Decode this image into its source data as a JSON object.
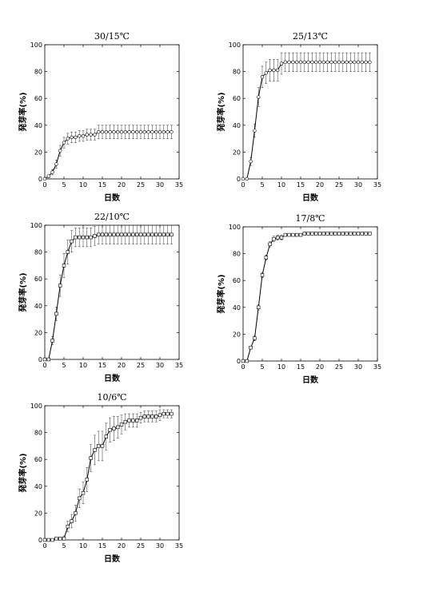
{
  "chart_data": [
    {
      "type": "line",
      "title": "30/15℃",
      "xlabel": "日数",
      "ylabel": "発芽率(%)",
      "xlim": [
        0,
        35
      ],
      "ylim": [
        0,
        100
      ],
      "xticks": [
        0,
        5,
        10,
        15,
        20,
        25,
        30,
        35
      ],
      "yticks": [
        0,
        20,
        40,
        60,
        80,
        100
      ],
      "marker": "circle",
      "x": [
        0,
        1,
        2,
        3,
        4,
        5,
        6,
        7,
        8,
        9,
        10,
        11,
        12,
        13,
        14,
        15,
        16,
        17,
        18,
        19,
        20,
        21,
        22,
        23,
        24,
        25,
        26,
        27,
        28,
        29,
        30,
        31,
        32,
        33
      ],
      "values": [
        0,
        2,
        5,
        11,
        21,
        27,
        30,
        31,
        31,
        32,
        32,
        33,
        33,
        33,
        35,
        35,
        35,
        35,
        35,
        35,
        35,
        35,
        35,
        35,
        35,
        35,
        35,
        35,
        35,
        35,
        35,
        35,
        35,
        35
      ],
      "error": [
        0,
        1,
        2,
        3,
        4,
        4,
        4,
        4,
        4,
        4,
        4,
        4,
        4,
        4,
        5,
        5,
        5,
        5,
        5,
        5,
        5,
        5,
        5,
        5,
        5,
        5,
        5,
        5,
        5,
        5,
        5,
        5,
        5,
        5
      ]
    },
    {
      "type": "line",
      "title": "25/13℃",
      "xlabel": "日数",
      "ylabel": "発芽率(%)",
      "xlim": [
        0,
        35
      ],
      "ylim": [
        0,
        100
      ],
      "xticks": [
        0,
        5,
        10,
        15,
        20,
        25,
        30,
        35
      ],
      "yticks": [
        0,
        20,
        40,
        60,
        80,
        100
      ],
      "marker": "circle",
      "x": [
        0,
        1,
        2,
        3,
        4,
        5,
        6,
        7,
        8,
        9,
        10,
        11,
        12,
        13,
        14,
        15,
        16,
        17,
        18,
        19,
        20,
        21,
        22,
        23,
        24,
        25,
        26,
        27,
        28,
        29,
        30,
        31,
        32,
        33
      ],
      "values": [
        0,
        0,
        13,
        36,
        61,
        76,
        79,
        81,
        81,
        81,
        86,
        87,
        87,
        87,
        87,
        87,
        87,
        87,
        87,
        87,
        87,
        87,
        87,
        87,
        87,
        87,
        87,
        87,
        87,
        87,
        87,
        87,
        87,
        87
      ],
      "error": [
        0,
        0,
        3,
        5,
        7,
        8,
        8,
        8,
        8,
        8,
        8,
        7,
        7,
        7,
        7,
        7,
        7,
        7,
        7,
        7,
        7,
        7,
        7,
        7,
        7,
        7,
        7,
        7,
        7,
        7,
        7,
        7,
        7,
        7
      ]
    },
    {
      "type": "line",
      "title": "22/10℃",
      "xlabel": "日数",
      "ylabel": "発芽率(%)",
      "xlim": [
        0,
        35
      ],
      "ylim": [
        0,
        100
      ],
      "xticks": [
        0,
        5,
        10,
        15,
        20,
        25,
        30,
        35
      ],
      "yticks": [
        0,
        20,
        40,
        60,
        80,
        100
      ],
      "marker": "square",
      "x": [
        0,
        1,
        2,
        3,
        4,
        5,
        6,
        7,
        8,
        9,
        10,
        11,
        12,
        13,
        14,
        15,
        16,
        17,
        18,
        19,
        20,
        21,
        22,
        23,
        24,
        25,
        26,
        27,
        28,
        29,
        30,
        31,
        32,
        33
      ],
      "values": [
        0,
        0,
        14,
        34,
        55,
        70,
        80,
        88,
        91,
        91,
        91,
        91,
        91,
        92,
        93,
        93,
        93,
        93,
        93,
        93,
        93,
        93,
        93,
        93,
        93,
        93,
        93,
        93,
        93,
        93,
        93,
        93,
        93,
        93
      ],
      "error": [
        0,
        0,
        3,
        5,
        8,
        9,
        9,
        8,
        7,
        7,
        7,
        7,
        7,
        7,
        7,
        7,
        7,
        7,
        7,
        7,
        7,
        7,
        7,
        7,
        7,
        7,
        7,
        7,
        7,
        7,
        7,
        7,
        7,
        7
      ]
    },
    {
      "type": "line",
      "title": "17/8℃",
      "xlabel": "日数",
      "ylabel": "発芽率(%)",
      "xlim": [
        0,
        35
      ],
      "ylim": [
        0,
        100
      ],
      "xticks": [
        0,
        5,
        10,
        15,
        20,
        25,
        30,
        35
      ],
      "yticks": [
        0,
        20,
        40,
        60,
        80,
        100
      ],
      "marker": "square",
      "x": [
        0,
        1,
        2,
        3,
        4,
        5,
        6,
        7,
        8,
        9,
        10,
        11,
        12,
        13,
        14,
        15,
        16,
        17,
        18,
        19,
        20,
        21,
        22,
        23,
        24,
        25,
        26,
        27,
        28,
        29,
        30,
        31,
        32,
        33
      ],
      "values": [
        0,
        0,
        10,
        17,
        40,
        64,
        77,
        87,
        91,
        92,
        92,
        94,
        94,
        94,
        94,
        94,
        95,
        95,
        95,
        95,
        95,
        95,
        95,
        95,
        95,
        95,
        95,
        95,
        95,
        95,
        95,
        95,
        95,
        95
      ],
      "error": [
        0,
        0,
        1,
        2,
        2,
        2,
        2,
        2,
        2,
        2,
        2,
        1,
        1,
        1,
        1,
        1,
        1,
        1,
        1,
        1,
        1,
        1,
        1,
        1,
        1,
        1,
        1,
        1,
        1,
        1,
        1,
        1,
        1,
        1
      ]
    },
    {
      "type": "line",
      "title": "10/6℃",
      "xlabel": "日数",
      "ylabel": "発芽率(%)",
      "xlim": [
        0,
        35
      ],
      "ylim": [
        0,
        100
      ],
      "xticks": [
        0,
        5,
        10,
        15,
        20,
        25,
        30,
        35
      ],
      "yticks": [
        0,
        20,
        40,
        60,
        80,
        100
      ],
      "marker": "square",
      "x": [
        0,
        1,
        2,
        3,
        4,
        5,
        6,
        7,
        8,
        9,
        10,
        11,
        12,
        13,
        14,
        15,
        16,
        17,
        18,
        19,
        20,
        21,
        22,
        23,
        24,
        25,
        26,
        27,
        28,
        29,
        30,
        31,
        32,
        33
      ],
      "values": [
        0,
        0,
        0,
        1,
        1,
        1,
        10,
        14,
        20,
        31,
        35,
        45,
        61,
        67,
        70,
        70,
        77,
        82,
        83,
        84,
        86,
        88,
        89,
        89,
        89,
        91,
        92,
        92,
        92,
        92,
        93,
        94,
        94,
        94
      ],
      "error": [
        0,
        0,
        0,
        1,
        1,
        2,
        4,
        5,
        6,
        7,
        8,
        9,
        10,
        11,
        11,
        11,
        10,
        9,
        9,
        8,
        7,
        6,
        5,
        5,
        5,
        4,
        4,
        4,
        4,
        4,
        4,
        3,
        3,
        3
      ]
    }
  ]
}
